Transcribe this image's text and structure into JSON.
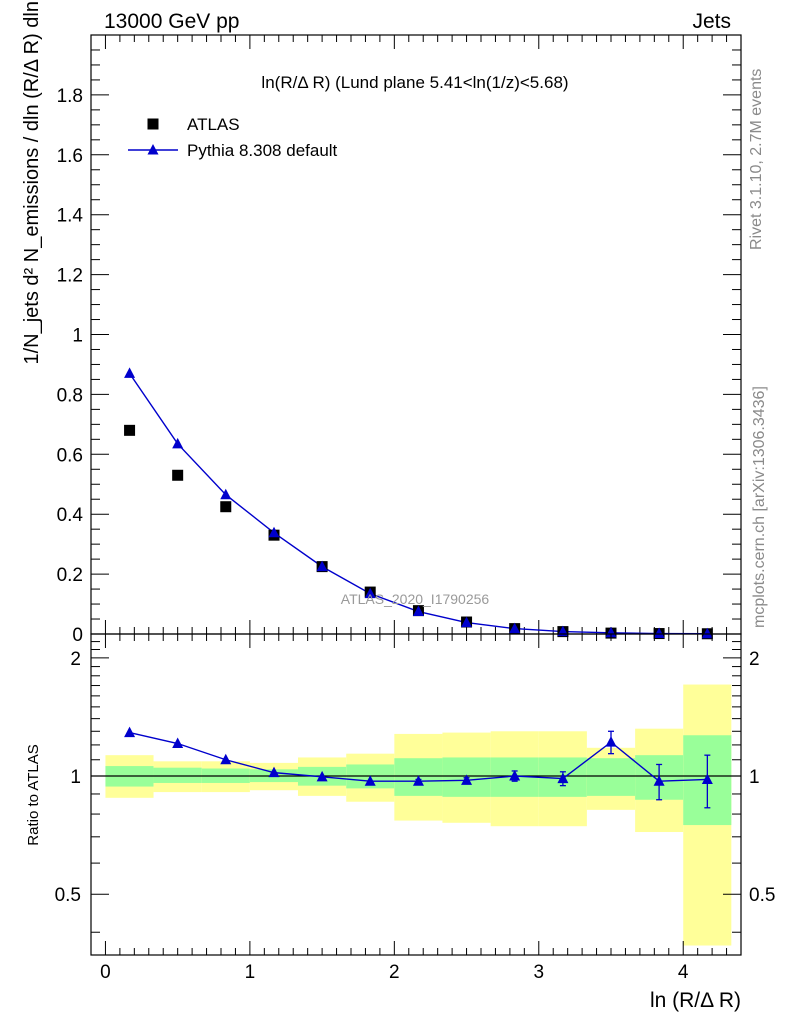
{
  "header": {
    "left": "13000 GeV pp",
    "right": "Jets"
  },
  "side_labels": {
    "rivet": "Rivet 3.1.10,  2.7M events",
    "mcplots": "mcplots.cern.ch [arXiv:1306.3436]"
  },
  "watermark": "ATLAS_2020_I1790256",
  "colors": {
    "data": "#000000",
    "mc": "#0000cc",
    "band_inner": "#99ff99",
    "band_outer": "#ffff99"
  },
  "chart_data": [
    {
      "type": "scatter",
      "panel": "main",
      "title": "ln(R/Δ R) (Lund plane 5.41<ln(1/z)<5.68)",
      "ylabel": "1/N_jets d² N_emissions / dln (R/Δ R) dln (1/z)",
      "xlim": [
        -0.1,
        4.4
      ],
      "ylim": [
        0,
        2.0
      ],
      "yticks": [
        0,
        0.2,
        0.4,
        0.6,
        0.8,
        1,
        1.2,
        1.4,
        1.6,
        1.8
      ],
      "ytick_labels": [
        "0",
        "0.2",
        "0.4",
        "0.6",
        "0.8",
        "1",
        "1.2",
        "1.4",
        "1.6",
        "1.8"
      ],
      "legend_position": "top-left",
      "x": [
        0.167,
        0.5,
        0.833,
        1.167,
        1.5,
        1.833,
        2.167,
        2.5,
        2.833,
        3.167,
        3.5,
        3.833,
        4.167
      ],
      "series": [
        {
          "name": "ATLAS",
          "marker": "square",
          "values": [
            0.68,
            0.53,
            0.425,
            0.33,
            0.225,
            0.14,
            0.078,
            0.04,
            0.018,
            0.008,
            0.003,
            0.0015,
            0.0008
          ]
        },
        {
          "name": "Pythia 8.308 default",
          "marker": "triangle",
          "line": true,
          "values": [
            0.87,
            0.635,
            0.465,
            0.338,
            0.225,
            0.135,
            0.075,
            0.038,
            0.018,
            0.008,
            0.004,
            0.0015,
            0.0008
          ]
        }
      ]
    },
    {
      "type": "scatter",
      "panel": "ratio",
      "ylabel": "Ratio to ATLAS",
      "xlabel": "ln (R/Δ R)",
      "log_y": true,
      "xlim": [
        -0.1,
        4.4
      ],
      "ylim": [
        0.35,
        2.3
      ],
      "xticks": [
        0,
        1,
        2,
        3,
        4
      ],
      "xtick_labels": [
        "0",
        "1",
        "2",
        "3",
        "4"
      ],
      "yticks": [
        0.5,
        1,
        2
      ],
      "ytick_labels": [
        "0.5",
        "1",
        "2"
      ],
      "bin_edges": [
        0.0,
        0.333,
        0.667,
        1.0,
        1.333,
        1.667,
        2.0,
        2.333,
        2.667,
        3.0,
        3.333,
        3.667,
        4.0,
        4.333
      ],
      "band_inner": {
        "low": [
          0.94,
          0.96,
          0.96,
          0.965,
          0.945,
          0.93,
          0.89,
          0.885,
          0.885,
          0.885,
          0.89,
          0.87,
          0.75
        ],
        "high": [
          1.06,
          1.05,
          1.045,
          1.04,
          1.055,
          1.07,
          1.11,
          1.115,
          1.115,
          1.115,
          1.11,
          1.13,
          1.27
        ]
      },
      "band_outer": {
        "low": [
          0.88,
          0.91,
          0.91,
          0.92,
          0.89,
          0.86,
          0.77,
          0.76,
          0.745,
          0.745,
          0.82,
          0.72,
          0.37
        ],
        "high": [
          1.13,
          1.09,
          1.09,
          1.08,
          1.115,
          1.14,
          1.28,
          1.29,
          1.3,
          1.3,
          1.18,
          1.32,
          1.71
        ]
      },
      "x": [
        0.167,
        0.5,
        0.833,
        1.167,
        1.5,
        1.833,
        2.167,
        2.5,
        2.833,
        3.167,
        3.5,
        3.833,
        4.167
      ],
      "series": [
        {
          "name": "Pythia 8.308 default",
          "values": [
            1.29,
            1.21,
            1.1,
            1.02,
            0.995,
            0.97,
            0.97,
            0.975,
            1.0,
            0.985,
            1.22,
            0.97,
            0.98
          ],
          "err": [
            0.008,
            0.008,
            0.008,
            0.008,
            0.008,
            0.008,
            0.01,
            0.015,
            0.03,
            0.04,
            0.08,
            0.1,
            0.15
          ]
        }
      ]
    }
  ]
}
